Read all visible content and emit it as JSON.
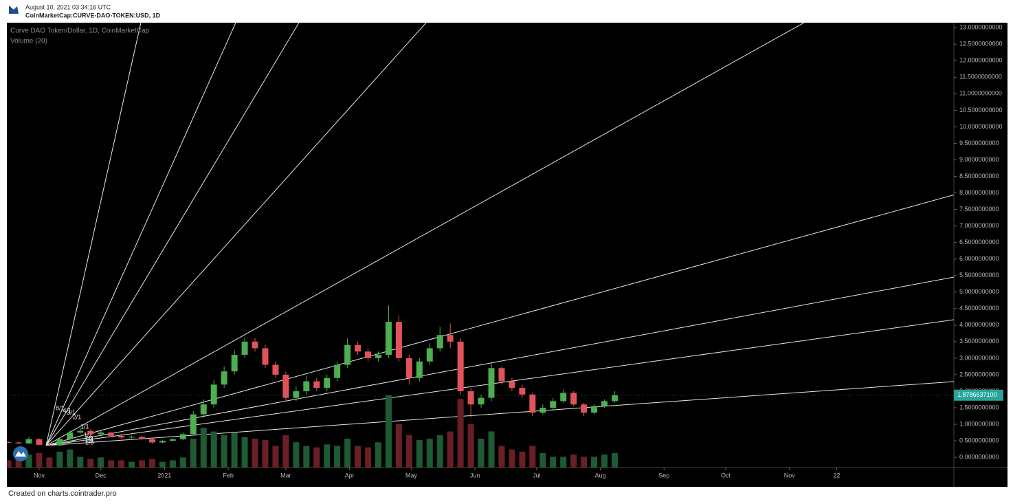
{
  "header": {
    "date": "August 10, 2021 03:34:16 UTC",
    "symbol": "CoinMarketCap:CURVE-DAO-TOKEN:USD, 1D"
  },
  "footer": "Created on charts.cointrader.pro",
  "chart_data": {
    "type": "candlestick",
    "title": "Curve DAO Token/Dollar, 1D, CoinMarketCap",
    "volume_title": "Volume (20)",
    "up_color": "#4caf50",
    "down_color": "#e0535a",
    "volume_up_color": "#1e5b35",
    "volume_down_color": "#6a1f26",
    "x": [
      -15,
      -10,
      -5,
      0,
      5,
      10,
      15,
      20,
      25,
      30,
      35,
      40,
      45,
      50,
      55,
      60,
      65,
      70,
      75,
      80,
      85,
      90,
      95,
      100,
      105,
      110,
      115,
      120,
      125,
      130,
      135,
      140,
      145,
      150,
      155,
      160,
      165,
      170,
      175,
      180,
      185,
      190,
      195,
      200,
      205,
      210,
      215,
      220,
      225,
      230,
      235,
      240,
      245,
      250,
      255,
      260,
      265,
      270,
      275,
      280
    ],
    "open": [
      0.46,
      0.45,
      0.42,
      0.55,
      0.38,
      0.36,
      0.55,
      0.75,
      0.8,
      0.7,
      0.75,
      0.65,
      0.6,
      0.62,
      0.55,
      0.45,
      0.5,
      0.55,
      0.7,
      1.3,
      1.6,
      2.2,
      2.6,
      3.1,
      3.5,
      3.3,
      2.8,
      2.5,
      1.8,
      2.0,
      2.3,
      2.1,
      2.4,
      2.8,
      3.4,
      3.2,
      3.0,
      3.1,
      4.1,
      3.0,
      2.4,
      2.9,
      3.3,
      3.7,
      3.5,
      2.0,
      1.6,
      1.8,
      2.7,
      2.3,
      2.1,
      1.9,
      1.35,
      1.5,
      1.7,
      1.95,
      1.6,
      1.35,
      1.55,
      1.7
    ],
    "high": [
      0.5,
      0.48,
      0.62,
      0.58,
      0.42,
      0.6,
      0.82,
      0.88,
      0.85,
      0.8,
      0.78,
      0.7,
      0.66,
      0.65,
      0.57,
      0.53,
      0.58,
      0.75,
      1.4,
      1.75,
      2.35,
      2.75,
      3.25,
      3.62,
      3.6,
      3.4,
      2.9,
      2.6,
      2.15,
      2.45,
      2.4,
      2.5,
      2.9,
      3.6,
      3.5,
      3.3,
      3.2,
      4.6,
      4.3,
      3.1,
      3.0,
      3.45,
      3.95,
      4.05,
      3.6,
      2.1,
      1.9,
      2.9,
      2.75,
      2.4,
      2.2,
      1.95,
      1.6,
      1.8,
      2.05,
      2.0,
      1.65,
      1.6,
      1.75,
      2.0
    ],
    "low": [
      0.42,
      0.4,
      0.4,
      0.36,
      0.33,
      0.34,
      0.52,
      0.72,
      0.66,
      0.67,
      0.62,
      0.56,
      0.57,
      0.52,
      0.42,
      0.43,
      0.48,
      0.52,
      0.66,
      1.2,
      1.5,
      2.1,
      2.5,
      3.0,
      3.2,
      2.7,
      2.4,
      1.7,
      1.7,
      1.9,
      2.0,
      2.0,
      2.3,
      2.7,
      3.1,
      2.9,
      2.9,
      3.0,
      2.9,
      2.2,
      2.3,
      2.8,
      3.2,
      3.3,
      1.9,
      1.2,
      1.5,
      1.7,
      2.2,
      2.0,
      1.8,
      1.25,
      1.3,
      1.45,
      1.65,
      1.55,
      1.25,
      1.3,
      1.5,
      1.65
    ],
    "close": [
      0.45,
      0.42,
      0.55,
      0.38,
      0.36,
      0.55,
      0.75,
      0.8,
      0.7,
      0.75,
      0.65,
      0.6,
      0.62,
      0.55,
      0.45,
      0.5,
      0.55,
      0.7,
      1.3,
      1.6,
      2.2,
      2.6,
      3.1,
      3.5,
      3.3,
      2.8,
      2.5,
      1.8,
      2.0,
      2.3,
      2.1,
      2.4,
      2.8,
      3.4,
      3.2,
      3.0,
      3.1,
      4.1,
      3.0,
      2.4,
      2.9,
      3.3,
      3.7,
      3.5,
      2.0,
      1.6,
      1.8,
      2.7,
      2.3,
      2.1,
      1.9,
      1.35,
      1.5,
      1.7,
      1.95,
      1.6,
      1.35,
      1.55,
      1.7,
      1.88
    ],
    "volume": [
      10,
      12,
      18,
      20,
      14,
      22,
      25,
      15,
      12,
      14,
      10,
      10,
      8,
      10,
      12,
      8,
      10,
      14,
      40,
      55,
      50,
      45,
      48,
      42,
      40,
      38,
      30,
      45,
      35,
      30,
      28,
      32,
      30,
      40,
      30,
      28,
      35,
      100,
      60,
      45,
      38,
      40,
      45,
      50,
      95,
      60,
      40,
      50,
      30,
      25,
      22,
      30,
      20,
      15,
      15,
      18,
      15,
      15,
      18,
      20
    ],
    "last_price": {
      "value": 1.87866371,
      "label": "1.8786637100"
    },
    "last_price_color": "#26a69a",
    "fan_labels": [
      "1/8",
      "1/4",
      "1/3",
      "1/2",
      "1/1",
      "2/1",
      "3/1",
      "4/1",
      "8/1"
    ],
    "fan_color": "#e8e8e8",
    "xlim": [
      -15.7,
      445
    ],
    "xticks": [
      {
        "value": 0,
        "label": "Nov"
      },
      {
        "value": 30,
        "label": "Dec"
      },
      {
        "value": 61,
        "label": "2021"
      },
      {
        "value": 92,
        "label": "Feb"
      },
      {
        "value": 120,
        "label": "Mar"
      },
      {
        "value": 151,
        "label": "Apr"
      },
      {
        "value": 181,
        "label": "May"
      },
      {
        "value": 212,
        "label": "Jun"
      },
      {
        "value": 242,
        "label": "Jul"
      },
      {
        "value": 273,
        "label": "Aug"
      },
      {
        "value": 304,
        "label": "Sep"
      },
      {
        "value": 334,
        "label": "Oct"
      },
      {
        "value": 365,
        "label": "Nov"
      },
      {
        "value": 388,
        "label": "22"
      }
    ],
    "ylim": [
      -0.31,
      13.15
    ],
    "yticks": [
      {
        "value": 0,
        "label": "0.0000000000"
      },
      {
        "value": 0.5,
        "label": "0.5000000000"
      },
      {
        "value": 1,
        "label": "1.0000000000"
      },
      {
        "value": 1.5,
        "label": "1.5000000000"
      },
      {
        "value": 2,
        "label": "2.0000000000"
      },
      {
        "value": 2.5,
        "label": "2.5000000000"
      },
      {
        "value": 3,
        "label": "3.0000000000"
      },
      {
        "value": 3.5,
        "label": "3.5000000000"
      },
      {
        "value": 4,
        "label": "4.0000000000"
      },
      {
        "value": 4.5,
        "label": "4.5000000000"
      },
      {
        "value": 5,
        "label": "5.0000000000"
      },
      {
        "value": 5.5,
        "label": "5.5000000000"
      },
      {
        "value": 6,
        "label": "6.0000000000"
      },
      {
        "value": 6.5,
        "label": "6.5000000000"
      },
      {
        "value": 7,
        "label": "7.0000000000"
      },
      {
        "value": 7.5,
        "label": "7.5000000000"
      },
      {
        "value": 8,
        "label": "8.0000000000"
      },
      {
        "value": 8.5,
        "label": "8.5000000000"
      },
      {
        "value": 9,
        "label": "9.0000000000"
      },
      {
        "value": 9.5,
        "label": "9.5000000000"
      },
      {
        "value": 10,
        "label": "10.0000000000"
      },
      {
        "value": 10.5,
        "label": "10.5000000000"
      },
      {
        "value": 11,
        "label": "11.0000000000"
      },
      {
        "value": 11.5,
        "label": "11.5000000000"
      },
      {
        "value": 12,
        "label": "12.0000000000"
      },
      {
        "value": 12.5,
        "label": "12.5000000000"
      },
      {
        "value": 13,
        "label": "13.0000000000"
      }
    ],
    "grid": false
  }
}
